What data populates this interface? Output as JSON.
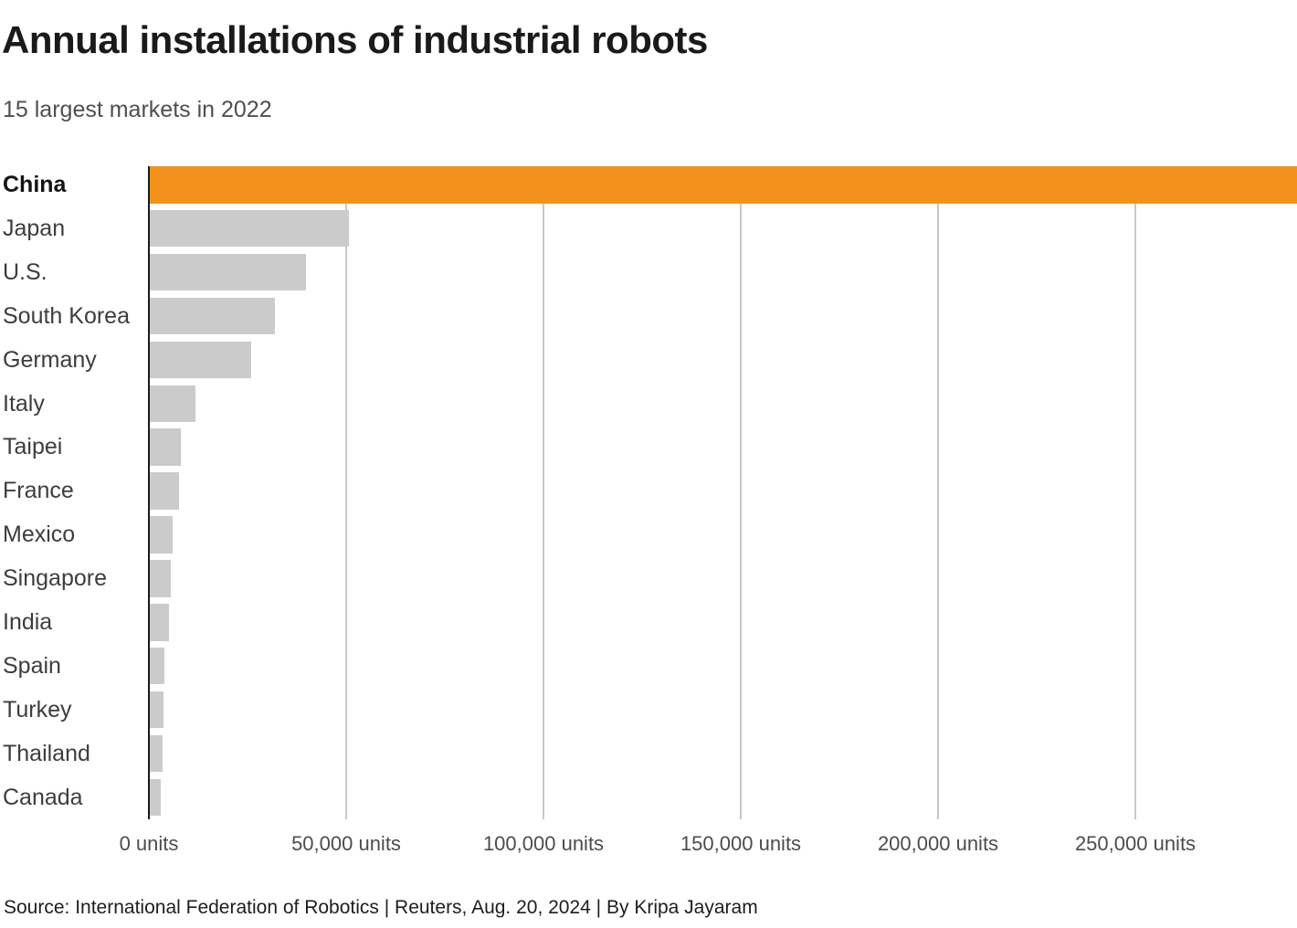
{
  "header": {
    "title": "Annual installations of industrial robots",
    "subtitle": "15 largest markets in 2022"
  },
  "footer": {
    "source_line": "Source: International Federation of Robotics | Reuters, Aug. 20, 2024 | By Kripa Jayaram"
  },
  "colors": {
    "highlight_bar": "#F4901E",
    "default_bar": "#CBCBCB",
    "axis_line": "#1A1A1A",
    "gridline": "#C8C8C8",
    "title_text": "#1A1A1A",
    "subtitle_text": "#4F4F4F",
    "category_text": "#3D3D3D",
    "tick_text": "#4C4C4C"
  },
  "chart_data": {
    "type": "bar",
    "orientation": "horizontal",
    "title": "Annual installations of industrial robots",
    "subtitle": "15 largest markets in 2022",
    "unit": "units",
    "categories": [
      "China",
      "Japan",
      "U.S.",
      "South Korea",
      "Germany",
      "Italy",
      "Taipei",
      "France",
      "Mexico",
      "Singapore",
      "India",
      "Spain",
      "Turkey",
      "Thailand",
      "Canada"
    ],
    "values": [
      290258,
      50413,
      39576,
      31716,
      25636,
      11475,
      7911,
      7380,
      5819,
      5257,
      4945,
      3645,
      3548,
      3174,
      2781
    ],
    "highlighted_category": "China",
    "xlim": [
      0,
      291000
    ],
    "x_ticks": [
      {
        "value": 0,
        "label": "0 units"
      },
      {
        "value": 50000,
        "label": "50,000 units"
      },
      {
        "value": 100000,
        "label": "100,000 units"
      },
      {
        "value": 150000,
        "label": "150,000 units"
      },
      {
        "value": 200000,
        "label": "200,000 units"
      },
      {
        "value": 250000,
        "label": "250,000 units"
      }
    ],
    "grid": true,
    "legend": false
  }
}
